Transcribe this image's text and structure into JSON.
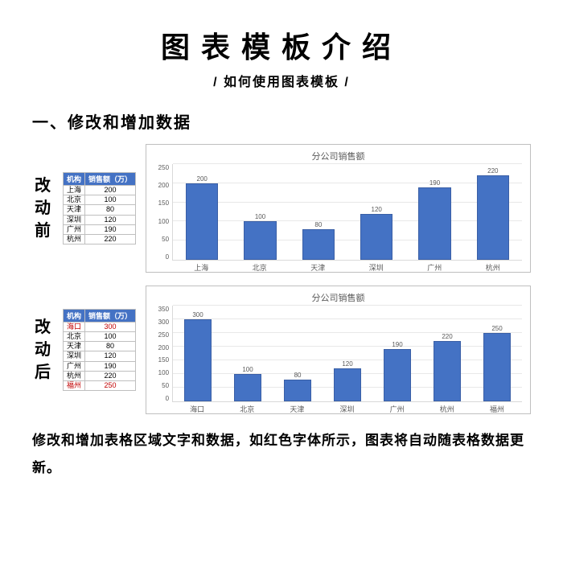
{
  "title": "图表模板介绍",
  "subtitle": "/ 如何使用图表模板 /",
  "section_heading": "一、修改和增加数据",
  "labels": {
    "before": "改动前",
    "after": "改动后"
  },
  "table_headers": {
    "col1": "机构",
    "col2": "销售额（万）"
  },
  "before": {
    "rows": [
      {
        "name": "上海",
        "val": "200",
        "red": false
      },
      {
        "name": "北京",
        "val": "100",
        "red": false
      },
      {
        "name": "天津",
        "val": "80",
        "red": false
      },
      {
        "name": "深圳",
        "val": "120",
        "red": false
      },
      {
        "name": "广州",
        "val": "190",
        "red": false
      },
      {
        "name": "杭州",
        "val": "220",
        "red": false
      }
    ],
    "chart": {
      "title": "分公司销售额",
      "type": "bar",
      "ymax": 250,
      "ystep": 50,
      "bar_color": "#4472c4",
      "grid_color": "#e8e8e8",
      "categories": [
        "上海",
        "北京",
        "天津",
        "深圳",
        "广州",
        "杭州"
      ],
      "values": [
        200,
        100,
        80,
        120,
        190,
        220
      ]
    }
  },
  "after": {
    "rows": [
      {
        "name": "海口",
        "val": "300",
        "red": true
      },
      {
        "name": "北京",
        "val": "100",
        "red": false
      },
      {
        "name": "天津",
        "val": "80",
        "red": false
      },
      {
        "name": "深圳",
        "val": "120",
        "red": false
      },
      {
        "name": "广州",
        "val": "190",
        "red": false
      },
      {
        "name": "杭州",
        "val": "220",
        "red": false
      },
      {
        "name": "福州",
        "val": "250",
        "red": true
      }
    ],
    "chart": {
      "title": "分公司销售额",
      "type": "bar",
      "ymax": 350,
      "ystep": 50,
      "bar_color": "#4472c4",
      "grid_color": "#e8e8e8",
      "categories": [
        "海口",
        "北京",
        "天津",
        "深圳",
        "广州",
        "杭州",
        "福州"
      ],
      "values": [
        300,
        100,
        80,
        120,
        190,
        220,
        250
      ]
    }
  },
  "footer": "修改和增加表格区域文字和数据，如红色字体所示，图表将自动随表格数据更新。"
}
